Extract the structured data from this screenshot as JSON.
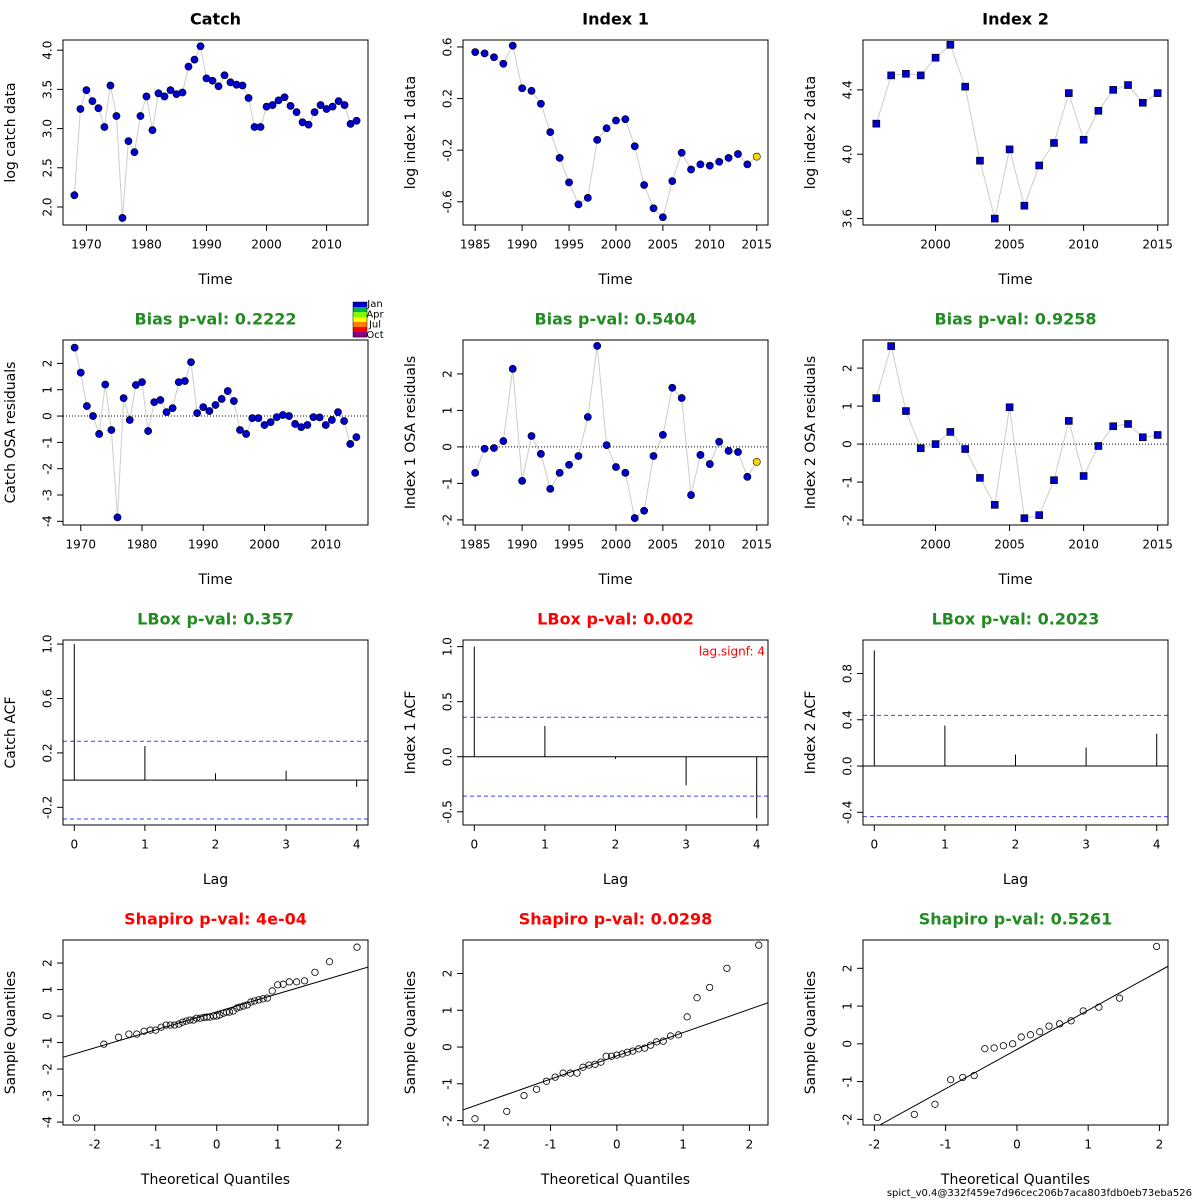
{
  "chart_data": [
    {
      "type": "line",
      "title": "Catch",
      "title_color": "#000000",
      "xlabel": "Time",
      "ylabel": "log catch data",
      "marker": "circle",
      "color": "#0000CD",
      "line_color": "#CCCCCC",
      "x": [
        1968,
        1969,
        1970,
        1971,
        1972,
        1973,
        1974,
        1975,
        1976,
        1977,
        1978,
        1979,
        1980,
        1981,
        1982,
        1983,
        1984,
        1985,
        1986,
        1987,
        1988,
        1989,
        1990,
        1991,
        1992,
        1993,
        1994,
        1995,
        1996,
        1997,
        1998,
        1999,
        2000,
        2001,
        2002,
        2003,
        2004,
        2005,
        2006,
        2007,
        2008,
        2009,
        2010,
        2011,
        2012,
        2013,
        2014,
        2015
      ],
      "values": [
        2.15,
        3.25,
        3.49,
        3.35,
        3.26,
        3.02,
        3.55,
        3.16,
        1.86,
        2.84,
        2.7,
        3.16,
        3.41,
        2.98,
        3.45,
        3.41,
        3.49,
        3.44,
        3.46,
        3.79,
        3.88,
        4.05,
        3.64,
        3.61,
        3.54,
        3.68,
        3.59,
        3.56,
        3.55,
        3.39,
        3.02,
        3.02,
        3.28,
        3.3,
        3.36,
        3.4,
        3.29,
        3.21,
        3.08,
        3.05,
        3.21,
        3.3,
        3.25,
        3.28,
        3.35,
        3.3,
        3.06,
        3.1
      ],
      "xlim": [
        1966.1,
        2016.9
      ],
      "ylim": [
        1.77,
        4.13
      ],
      "xticks": [
        1970,
        1980,
        1990,
        2000,
        2010
      ],
      "yticks": [
        {
          "value": 2,
          "label": "2.0"
        },
        2.5,
        {
          "value": 3,
          "label": "3.0"
        },
        3.5,
        {
          "value": 4,
          "label": "4.0"
        }
      ]
    },
    {
      "type": "line",
      "title": "Index 1",
      "title_color": "#000000",
      "xlabel": "Time",
      "ylabel": "log index 1 data",
      "marker": "circle",
      "color": "#0000CD",
      "line_color": "#CCCCCC",
      "x": [
        1985,
        1986,
        1987,
        1988,
        1989,
        1990,
        1991,
        1992,
        1993,
        1994,
        1995,
        1996,
        1997,
        1998,
        1999,
        2000,
        2001,
        2002,
        2003,
        2004,
        2005,
        2006,
        2007,
        2008,
        2009,
        2010,
        2011,
        2012,
        2013,
        2014,
        2015
      ],
      "values": [
        0.56,
        0.55,
        0.52,
        0.47,
        0.61,
        0.28,
        0.26,
        0.16,
        -0.06,
        -0.26,
        -0.45,
        -0.62,
        -0.57,
        -0.12,
        -0.03,
        0.03,
        0.04,
        -0.17,
        -0.47,
        -0.65,
        -0.72,
        -0.44,
        -0.22,
        -0.35,
        -0.31,
        -0.32,
        -0.29,
        -0.26,
        -0.23,
        -0.31,
        -0.25
      ],
      "point_colors": [
        "#0000CD",
        "#0000CD",
        "#0000CD",
        "#0000CD",
        "#0000CD",
        "#0000CD",
        "#0000CD",
        "#0000CD",
        "#0000CD",
        "#0000CD",
        "#0000CD",
        "#0000CD",
        "#0000CD",
        "#0000CD",
        "#0000CD",
        "#0000CD",
        "#0000CD",
        "#0000CD",
        "#0000CD",
        "#0000CD",
        "#0000CD",
        "#0000CD",
        "#0000CD",
        "#0000CD",
        "#0000CD",
        "#0000CD",
        "#0000CD",
        "#0000CD",
        "#0000CD",
        "#0000CD",
        "#FFD700"
      ],
      "xlim": [
        1983.7,
        2016.2
      ],
      "ylim": [
        -0.78,
        0.654
      ],
      "xticks": [
        1985,
        1990,
        1995,
        2000,
        2005,
        2010,
        2015
      ],
      "yticks": [
        -0.6,
        -0.2,
        0.2,
        0.6
      ]
    },
    {
      "type": "line",
      "title": "Index 2",
      "title_color": "#000000",
      "xlabel": "Time",
      "ylabel": "log index 2 data",
      "marker": "square",
      "color": "#0000CD",
      "line_color": "#CCCCCC",
      "x": [
        1996,
        1997,
        1998,
        1999,
        2000,
        2001,
        2002,
        2003,
        2004,
        2005,
        2006,
        2007,
        2008,
        2009,
        2010,
        2011,
        2012,
        2013,
        2014,
        2015
      ],
      "values": [
        4.19,
        4.49,
        4.5,
        4.49,
        4.6,
        4.68,
        4.42,
        3.96,
        3.6,
        4.03,
        3.68,
        3.93,
        4.07,
        4.38,
        4.09,
        4.27,
        4.4,
        4.43,
        4.32,
        4.38
      ],
      "xlim": [
        1995.1,
        2015.7
      ],
      "ylim": [
        3.56,
        4.71
      ],
      "xticks": [
        2000,
        2005,
        2010,
        2015
      ],
      "yticks": [
        3.6,
        {
          "value": 4,
          "label": "4.0"
        },
        4.4
      ]
    },
    {
      "type": "line",
      "title": "Bias p-val: 0.2222",
      "title_color": "#228B22",
      "xlabel": "Time",
      "ylabel": "Catch OSA residuals",
      "marker": "circle",
      "color": "#0000CD",
      "line_color": "#CCCCCC",
      "hline": 0,
      "x": [
        1969,
        1970,
        1971,
        1972,
        1973,
        1974,
        1975,
        1976,
        1977,
        1978,
        1979,
        1980,
        1981,
        1982,
        1983,
        1984,
        1985,
        1986,
        1987,
        1988,
        1989,
        1990,
        1991,
        1992,
        1993,
        1994,
        1995,
        1996,
        1997,
        1998,
        1999,
        2000,
        2001,
        2002,
        2003,
        2004,
        2005,
        2006,
        2007,
        2008,
        2009,
        2010,
        2011,
        2012,
        2013,
        2014,
        2015
      ],
      "values": [
        2.6,
        1.65,
        0.38,
        0,
        -0.68,
        1.2,
        -0.53,
        -3.85,
        0.68,
        -0.15,
        1.18,
        1.29,
        -0.57,
        0.53,
        0.61,
        0.15,
        0.3,
        1.29,
        1.33,
        2.05,
        0.11,
        0.34,
        0.19,
        0.42,
        0.65,
        0.95,
        0.57,
        -0.53,
        -0.68,
        -0.08,
        -0.08,
        -0.34,
        -0.23,
        -0.04,
        0.04,
        0,
        -0.3,
        -0.42,
        -0.34,
        -0.04,
        -0.05,
        -0.34,
        -0.15,
        0.15,
        -0.19,
        -1.06,
        -0.8
      ],
      "xlim": [
        1967.1,
        2016.9
      ],
      "ylim": [
        -4.14,
        2.89
      ],
      "xticks": [
        1970,
        1980,
        1990,
        2000,
        2010
      ],
      "yticks": [
        -4,
        -3,
        -2,
        -1,
        0,
        1,
        2
      ]
    },
    {
      "type": "line",
      "title": "Bias p-val: 0.5404",
      "title_color": "#228B22",
      "xlabel": "Time",
      "ylabel": "Index 1 OSA residuals",
      "marker": "circle",
      "color": "#0000CD",
      "line_color": "#CCCCCC",
      "hline": 0,
      "x": [
        1985,
        1986,
        1987,
        1988,
        1989,
        1990,
        1991,
        1992,
        1993,
        1994,
        1995,
        1996,
        1997,
        1998,
        1999,
        2000,
        2001,
        2002,
        2003,
        2004,
        2005,
        2006,
        2007,
        2008,
        2009,
        2010,
        2011,
        2012,
        2013,
        2014,
        2015
      ],
      "values": [
        -0.71,
        -0.05,
        -0.03,
        0.16,
        2.14,
        -0.93,
        0.3,
        -0.19,
        -1.15,
        -0.71,
        -0.49,
        -0.25,
        0.82,
        2.77,
        0.05,
        -0.55,
        -0.71,
        -1.95,
        -1.75,
        -0.25,
        0.33,
        1.62,
        1.34,
        -1.32,
        -0.22,
        -0.47,
        0.14,
        -0.11,
        -0.14,
        -0.82,
        -0.41
      ],
      "point_colors": [
        "#0000CD",
        "#0000CD",
        "#0000CD",
        "#0000CD",
        "#0000CD",
        "#0000CD",
        "#0000CD",
        "#0000CD",
        "#0000CD",
        "#0000CD",
        "#0000CD",
        "#0000CD",
        "#0000CD",
        "#0000CD",
        "#0000CD",
        "#0000CD",
        "#0000CD",
        "#0000CD",
        "#0000CD",
        "#0000CD",
        "#0000CD",
        "#0000CD",
        "#0000CD",
        "#0000CD",
        "#0000CD",
        "#0000CD",
        "#0000CD",
        "#0000CD",
        "#0000CD",
        "#0000CD",
        "#FFD700"
      ],
      "xlim": [
        1983.7,
        2016.2
      ],
      "ylim": [
        -2.14,
        2.93
      ],
      "xticks": [
        1985,
        1990,
        1995,
        2000,
        2005,
        2010,
        2015
      ],
      "yticks": [
        -2,
        -1,
        0,
        1,
        2
      ]
    },
    {
      "type": "line",
      "title": "Bias p-val: 0.9258",
      "title_color": "#228B22",
      "xlabel": "Time",
      "ylabel": "Index 2 OSA residuals",
      "marker": "square",
      "color": "#0000CD",
      "line_color": "#CCCCCC",
      "hline": 0,
      "x": [
        1996,
        1997,
        1998,
        1999,
        2000,
        2001,
        2002,
        2003,
        2004,
        2005,
        2006,
        2007,
        2008,
        2009,
        2010,
        2011,
        2012,
        2013,
        2014,
        2015
      ],
      "values": [
        1.21,
        2.58,
        0.87,
        -0.11,
        0,
        0.32,
        -0.13,
        -0.89,
        -1.6,
        0.97,
        -1.95,
        -1.87,
        -0.95,
        0.61,
        -0.84,
        -0.05,
        0.47,
        0.53,
        0.18,
        0.24
      ],
      "xlim": [
        1995.1,
        2015.7
      ],
      "ylim": [
        -2.13,
        2.74
      ],
      "xticks": [
        2000,
        2005,
        2010,
        2015
      ],
      "yticks": [
        -2,
        -1,
        0,
        1,
        2
      ]
    },
    {
      "type": "acf",
      "title": "LBox p-val: 0.357",
      "title_color": "#228B22",
      "xlabel": "Lag",
      "ylabel": "Catch ACF",
      "color": "#000000",
      "conf": 0.286,
      "conf_color": "#4040FF",
      "x": [
        0,
        1,
        2,
        3,
        4
      ],
      "values": [
        1,
        0.25,
        0.05,
        0.07,
        -0.05
      ],
      "xlim": [
        -0.16,
        4.16
      ],
      "ylim": [
        -0.33,
        1.03
      ],
      "xticks": [
        0,
        1,
        2,
        3,
        4
      ],
      "yticks": [
        -0.2,
        0.2,
        0.6,
        {
          "value": 1,
          "label": "1.0"
        }
      ]
    },
    {
      "type": "acf",
      "title": "LBox p-val: 0.002",
      "title_color": "#FF0000",
      "xlabel": "Lag",
      "ylabel": "Index 1 ACF",
      "color": "#000000",
      "conf": 0.358,
      "conf_color": "#4040FF",
      "annotation": "lag.signf: 4",
      "annotation_color": "#FF0000",
      "x": [
        0,
        1,
        2,
        3,
        4
      ],
      "values": [
        1,
        0.28,
        -0.02,
        -0.26,
        -0.56
      ],
      "xlim": [
        -0.16,
        4.16
      ],
      "ylim": [
        -0.62,
        1.06
      ],
      "xticks": [
        0,
        1,
        2,
        3,
        4
      ],
      "yticks": [
        -0.5,
        {
          "value": 0,
          "label": "0.0"
        },
        0.5,
        {
          "value": 1,
          "label": "1.0"
        }
      ]
    },
    {
      "type": "acf",
      "title": "LBox p-val: 0.2023",
      "title_color": "#228B22",
      "xlabel": "Lag",
      "ylabel": "Index 2 ACF",
      "color": "#000000",
      "conf": 0.438,
      "conf_color": "#4040FF",
      "x": [
        0,
        1,
        2,
        3,
        4
      ],
      "values": [
        1,
        0.35,
        0.1,
        0.16,
        0.28
      ],
      "xlim": [
        -0.16,
        4.16
      ],
      "ylim": [
        -0.51,
        1.09
      ],
      "xticks": [
        0,
        1,
        2,
        3,
        4
      ],
      "yticks": [
        -0.4,
        {
          "value": 0,
          "label": "0.0"
        },
        0.4,
        0.8
      ]
    },
    {
      "type": "scatter",
      "title": "Shapiro p-val: 4e-04",
      "title_color": "#FF0000",
      "xlabel": "Theoretical Quantiles",
      "ylabel": "Sample Quantiles",
      "color": "#000000",
      "qqline": {
        "intercept": 0.16,
        "slope": 0.68
      },
      "x": [
        -2.3,
        -1.85,
        -1.61,
        -1.44,
        -1.31,
        -1.19,
        -1.09,
        -1,
        -0.91,
        -0.83,
        -0.76,
        -0.69,
        -0.62,
        -0.56,
        -0.5,
        -0.44,
        -0.38,
        -0.33,
        -0.27,
        -0.21,
        -0.16,
        -0.11,
        -0.05,
        0,
        0.05,
        0.11,
        0.16,
        0.21,
        0.27,
        0.33,
        0.38,
        0.44,
        0.5,
        0.56,
        0.62,
        0.69,
        0.76,
        0.83,
        0.91,
        1,
        1.09,
        1.19,
        1.31,
        1.44,
        1.61,
        1.85,
        2.3
      ],
      "values": [
        -3.85,
        -1.06,
        -0.8,
        -0.68,
        -0.68,
        -0.57,
        -0.53,
        -0.53,
        -0.42,
        -0.34,
        -0.34,
        -0.34,
        -0.3,
        -0.23,
        -0.19,
        -0.15,
        -0.15,
        -0.08,
        -0.08,
        -0.05,
        -0.04,
        -0.04,
        0,
        0,
        0.04,
        0.11,
        0.15,
        0.15,
        0.19,
        0.3,
        0.34,
        0.38,
        0.42,
        0.53,
        0.57,
        0.61,
        0.65,
        0.68,
        0.95,
        1.18,
        1.2,
        1.29,
        1.29,
        1.33,
        1.65,
        2.05,
        2.6
      ],
      "xlim": [
        -2.52,
        2.48
      ],
      "ylim": [
        -4.11,
        2.87
      ],
      "xticks": [
        -2,
        -1,
        0,
        1,
        2
      ],
      "yticks": [
        -4,
        -3,
        -2,
        -1,
        0,
        1,
        2
      ]
    },
    {
      "type": "scatter",
      "title": "Shapiro p-val: 0.0298",
      "title_color": "#FF0000",
      "xlabel": "Theoretical Quantiles",
      "ylabel": "Sample Quantiles",
      "color": "#000000",
      "qqline": {
        "intercept": -0.24,
        "slope": 0.633
      },
      "x": [
        -2.14,
        -1.66,
        -1.4,
        -1.21,
        -1.06,
        -0.93,
        -0.81,
        -0.7,
        -0.6,
        -0.51,
        -0.42,
        -0.33,
        -0.24,
        -0.16,
        -0.08,
        0,
        0.08,
        0.16,
        0.24,
        0.33,
        0.42,
        0.51,
        0.6,
        0.7,
        0.81,
        0.93,
        1.06,
        1.21,
        1.4,
        1.66,
        2.14
      ],
      "values": [
        -1.95,
        -1.75,
        -1.32,
        -1.15,
        -0.93,
        -0.82,
        -0.71,
        -0.71,
        -0.71,
        -0.55,
        -0.49,
        -0.47,
        -0.41,
        -0.25,
        -0.25,
        -0.22,
        -0.19,
        -0.14,
        -0.11,
        -0.05,
        -0.03,
        0.05,
        0.14,
        0.16,
        0.3,
        0.33,
        0.82,
        1.34,
        1.62,
        2.14,
        2.77
      ],
      "xlim": [
        -2.32,
        2.28
      ],
      "ylim": [
        -2.12,
        2.91
      ],
      "xticks": [
        -2,
        -1,
        0,
        1,
        2
      ],
      "yticks": [
        -2,
        -1,
        0,
        1,
        2
      ]
    },
    {
      "type": "scatter",
      "title": "Shapiro p-val: 0.5261",
      "title_color": "#228B22",
      "xlabel": "Theoretical Quantiles",
      "ylabel": "Sample Quantiles",
      "color": "#000000",
      "qqline": {
        "intercept": -0.15,
        "slope": 1.04
      },
      "x": [
        -1.96,
        -1.44,
        -1.15,
        -0.93,
        -0.76,
        -0.6,
        -0.45,
        -0.32,
        -0.19,
        -0.06,
        0.06,
        0.19,
        0.32,
        0.45,
        0.6,
        0.76,
        0.93,
        1.15,
        1.44,
        1.96
      ],
      "values": [
        -1.95,
        -1.87,
        -1.6,
        -0.95,
        -0.89,
        -0.84,
        -0.13,
        -0.11,
        -0.05,
        0,
        0.18,
        0.24,
        0.32,
        0.47,
        0.53,
        0.61,
        0.87,
        0.97,
        1.21,
        2.58
      ],
      "xlim": [
        -2.16,
        2.12
      ],
      "ylim": [
        -2.15,
        2.75
      ],
      "xticks": [
        -2,
        -1,
        0,
        1,
        2
      ],
      "yticks": [
        -2,
        -1,
        0,
        1,
        2
      ]
    }
  ],
  "season_legend": {
    "labels": [
      "Jan",
      "Apr",
      "Jul",
      "Oct"
    ],
    "colors": [
      "#0000CD",
      "#00B050",
      "#80FF00",
      "#FFFF00",
      "#FF8000",
      "#FF0000",
      "#8B008B"
    ]
  },
  "footer": "spict_v0.4@332f459e7d96cec206b7aca803fdb0eb73eba526"
}
